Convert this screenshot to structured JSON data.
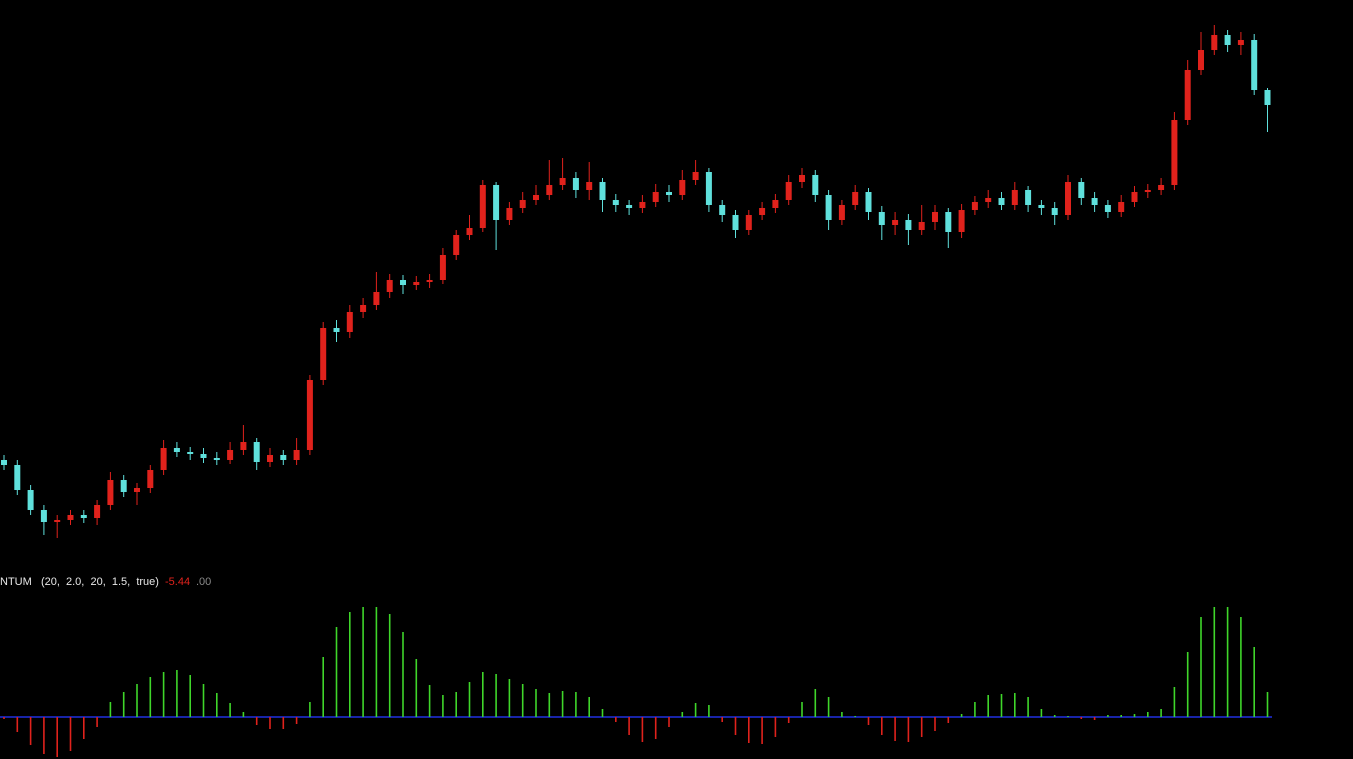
{
  "chart_data": [
    {
      "type": "candlestick",
      "up_color": "#e0221c",
      "down_color": "#5fe0dc",
      "ylim": [
        220,
        740
      ],
      "open": [
        300,
        295,
        270,
        250,
        238,
        240,
        245,
        242,
        255,
        280,
        268,
        272,
        290,
        312,
        308,
        306,
        302,
        300,
        310,
        318,
        298,
        305,
        300,
        310,
        380,
        432,
        428,
        448,
        455,
        468,
        480,
        475,
        478,
        480,
        505,
        525,
        532,
        575,
        540,
        552,
        560,
        565,
        575,
        582,
        570,
        578,
        560,
        555,
        552,
        558,
        568,
        565,
        580,
        588,
        555,
        545,
        530,
        545,
        552,
        560,
        578,
        585,
        565,
        540,
        555,
        568,
        548,
        535,
        540,
        530,
        538,
        548,
        528,
        550,
        558,
        562,
        555,
        570,
        555,
        552,
        545,
        578,
        562,
        555,
        548,
        558,
        568,
        570,
        575,
        640,
        690,
        710,
        725,
        715,
        720,
        670
      ],
      "high": [
        305,
        300,
        275,
        255,
        245,
        250,
        250,
        260,
        288,
        285,
        277,
        295,
        320,
        318,
        313,
        312,
        308,
        318,
        335,
        322,
        312,
        310,
        322,
        385,
        438,
        440,
        455,
        462,
        488,
        486,
        485,
        484,
        486,
        512,
        530,
        545,
        580,
        578,
        558,
        568,
        575,
        600,
        602,
        588,
        598,
        582,
        566,
        560,
        565,
        576,
        575,
        590,
        600,
        592,
        560,
        550,
        550,
        558,
        566,
        585,
        592,
        590,
        570,
        560,
        575,
        572,
        554,
        548,
        546,
        555,
        555,
        552,
        556,
        564,
        570,
        568,
        578,
        574,
        560,
        558,
        585,
        582,
        568,
        560,
        565,
        574,
        576,
        582,
        648,
        700,
        728,
        735,
        730,
        728,
        726,
        672
      ],
      "low": [
        290,
        265,
        245,
        225,
        222,
        235,
        237,
        235,
        250,
        263,
        255,
        267,
        285,
        303,
        300,
        297,
        295,
        296,
        305,
        290,
        293,
        295,
        295,
        305,
        375,
        418,
        422,
        442,
        450,
        462,
        466,
        470,
        472,
        476,
        500,
        520,
        528,
        510,
        535,
        547,
        555,
        560,
        570,
        562,
        560,
        548,
        548,
        545,
        547,
        553,
        558,
        560,
        575,
        548,
        538,
        522,
        525,
        540,
        547,
        555,
        572,
        558,
        530,
        535,
        550,
        540,
        520,
        525,
        515,
        525,
        530,
        512,
        522,
        545,
        552,
        550,
        550,
        548,
        545,
        535,
        540,
        555,
        548,
        542,
        543,
        553,
        562,
        565,
        570,
        635,
        685,
        705,
        708,
        705,
        665,
        628
      ],
      "close": [
        295,
        270,
        250,
        238,
        240,
        245,
        242,
        255,
        280,
        268,
        272,
        290,
        312,
        308,
        306,
        302,
        300,
        310,
        318,
        298,
        305,
        300,
        310,
        380,
        432,
        428,
        448,
        455,
        468,
        480,
        475,
        478,
        480,
        505,
        525,
        532,
        575,
        540,
        552,
        560,
        565,
        575,
        582,
        570,
        578,
        560,
        555,
        552,
        558,
        568,
        565,
        580,
        588,
        555,
        545,
        530,
        545,
        552,
        560,
        578,
        585,
        565,
        540,
        555,
        568,
        548,
        535,
        540,
        530,
        538,
        548,
        528,
        550,
        558,
        562,
        555,
        570,
        555,
        552,
        545,
        578,
        562,
        555,
        548,
        558,
        568,
        570,
        575,
        640,
        690,
        710,
        725,
        715,
        720,
        670,
        655
      ]
    },
    {
      "type": "bar",
      "label": "NTUM   (20,  2.0,  20,  1.5,  true)",
      "readouts": [
        -5.44,
        {
          "value": 0,
          "label": ".00"
        }
      ],
      "up_color": "#3fd62a",
      "down_color": "#e0221c",
      "ylim": [
        -40,
        115
      ],
      "values": [
        -2,
        -15,
        -28,
        -37,
        -40,
        -34,
        -22,
        -10,
        15,
        25,
        33,
        40,
        45,
        47,
        42,
        33,
        24,
        14,
        5,
        -8,
        -12,
        -12,
        -7,
        15,
        60,
        90,
        105,
        110,
        110,
        103,
        85,
        58,
        32,
        22,
        25,
        35,
        45,
        43,
        38,
        33,
        28,
        24,
        26,
        25,
        20,
        8,
        -5,
        -18,
        -25,
        -22,
        -10,
        5,
        14,
        12,
        -5,
        -18,
        -26,
        -27,
        -20,
        -6,
        15,
        28,
        20,
        5,
        1,
        -8,
        -18,
        -24,
        -25,
        -20,
        -14,
        -6,
        3,
        15,
        22,
        23,
        24,
        20,
        8,
        2,
        1,
        -2,
        -3,
        2,
        2,
        3,
        5,
        8,
        30,
        65,
        100,
        110,
        110,
        100,
        70,
        25
      ]
    }
  ]
}
